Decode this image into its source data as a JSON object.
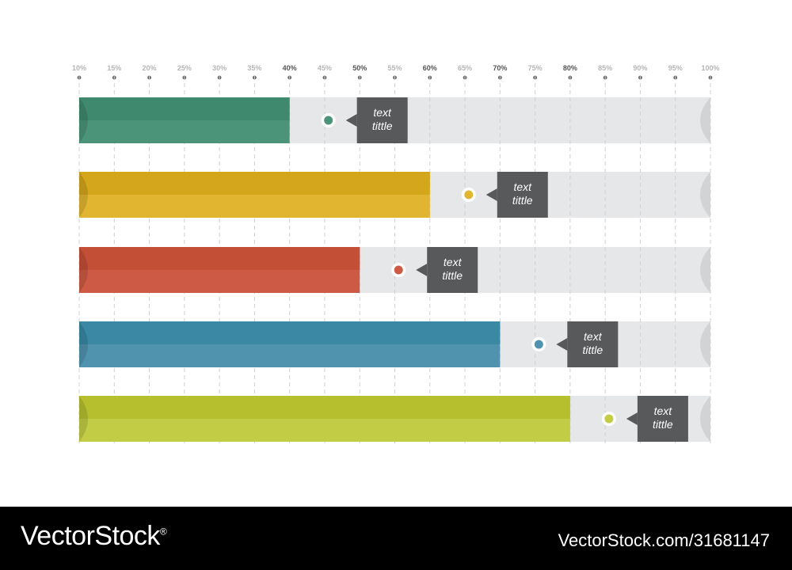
{
  "chart_data": {
    "type": "bar",
    "orientation": "horizontal",
    "x_ticks": [
      "10%",
      "15%",
      "20%",
      "25%",
      "30%",
      "35%",
      "40%",
      "45%",
      "50%",
      "55%",
      "60%",
      "65%",
      "70%",
      "75%",
      "80%",
      "85%",
      "90%",
      "95%",
      "100%"
    ],
    "xlim": [
      10,
      100
    ],
    "grid": true,
    "values": [
      40,
      60,
      50,
      70,
      80
    ],
    "colors": [
      "#4b9479",
      "#e2b531",
      "#cd5a45",
      "#4f93ae",
      "#c2cc45"
    ],
    "bar_dark_colors": [
      "#3f8a6e",
      "#d4a61c",
      "#c44f37",
      "#3a88a4",
      "#b6c02f"
    ],
    "track_color": "#e6e7e8",
    "callout_color": "#58595b",
    "callouts": [
      {
        "line1": "text",
        "line2": "tittle"
      },
      {
        "line1": "text",
        "line2": "tittle"
      },
      {
        "line1": "text",
        "line2": "tittle"
      },
      {
        "line1": "text",
        "line2": "tittle"
      },
      {
        "line1": "text",
        "line2": "tittle"
      }
    ]
  },
  "footer": {
    "brand": "VectorStock",
    "brand_mark": "®",
    "stock_id": "VectorStock.com/31681147"
  }
}
